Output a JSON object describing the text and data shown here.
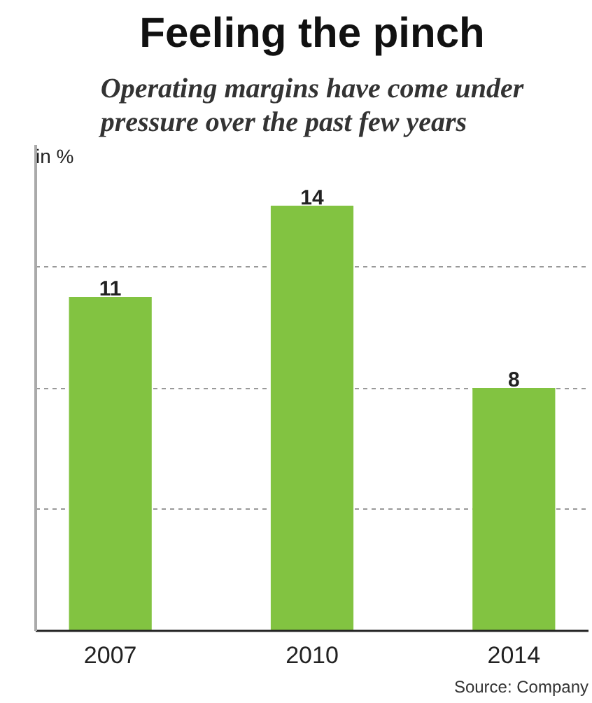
{
  "chart_data": {
    "type": "bar",
    "title": "Feeling the pinch",
    "subtitle": "Operating margins have come under pressure over the past few years",
    "ylabel": "in %",
    "categories": [
      "2007",
      "2010",
      "2014"
    ],
    "values": [
      11,
      14,
      8
    ],
    "color": "#82c341",
    "ylim": [
      0,
      16
    ],
    "yticks": [
      {
        "value": 4,
        "label": null
      },
      {
        "value": 8,
        "label": null
      },
      {
        "value": 12,
        "label": null
      }
    ],
    "grid": "y",
    "tick_labels": "x",
    "data_labels": true,
    "annotations": [
      "Source: Company"
    ]
  }
}
